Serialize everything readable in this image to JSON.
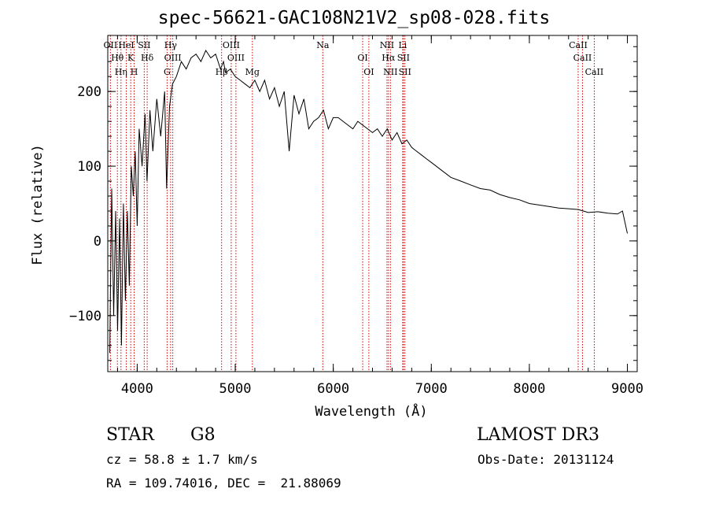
{
  "figure": {
    "title": "spec-56621-GAC108N21V2_sp08-028.fits",
    "object_class": "STAR",
    "subclass": "G8",
    "survey": "LAMOST DR3",
    "cz_text": "cz = 58.8 ± 1.7 km/s",
    "obs_date_text": "Obs-Date: 20131124",
    "radec_text": "RA = 109.74016, DEC =  21.88069"
  },
  "colors": {
    "spectrum": "#000000",
    "line_markers": "#cc0000",
    "axes": "#000000"
  },
  "chart_data": {
    "type": "line",
    "title": "spec-56621-GAC108N21V2_sp08-028.fits",
    "xlabel": "Wavelength (Å)",
    "ylabel": "Flux (relative)",
    "xlim": [
      3700,
      9100
    ],
    "ylim": [
      -175,
      275
    ],
    "xticks": [
      4000,
      5000,
      6000,
      7000,
      8000,
      9000
    ],
    "yticks": [
      -100,
      0,
      100,
      200
    ],
    "series": [
      {
        "name": "flux",
        "x": [
          3720,
          3740,
          3760,
          3780,
          3800,
          3820,
          3840,
          3860,
          3880,
          3900,
          3920,
          3940,
          3960,
          3980,
          4000,
          4020,
          4050,
          4080,
          4100,
          4130,
          4160,
          4200,
          4240,
          4280,
          4300,
          4330,
          4360,
          4400,
          4450,
          4500,
          4550,
          4600,
          4650,
          4700,
          4750,
          4800,
          4850,
          4880,
          4900,
          4950,
          5000,
          5050,
          5100,
          5150,
          5200,
          5250,
          5300,
          5350,
          5400,
          5450,
          5500,
          5550,
          5600,
          5650,
          5700,
          5750,
          5800,
          5850,
          5900,
          5950,
          6000,
          6050,
          6100,
          6150,
          6200,
          6250,
          6300,
          6350,
          6400,
          6450,
          6500,
          6550,
          6600,
          6650,
          6700,
          6750,
          6800,
          6850,
          6900,
          6950,
          7000,
          7100,
          7200,
          7300,
          7400,
          7500,
          7600,
          7700,
          7800,
          7900,
          8000,
          8100,
          8200,
          8300,
          8400,
          8500,
          8550,
          8600,
          8700,
          8800,
          8900,
          8950,
          9000
        ],
        "y": [
          -150,
          70,
          -100,
          40,
          -120,
          30,
          -140,
          50,
          -80,
          40,
          -60,
          100,
          60,
          120,
          20,
          150,
          100,
          170,
          80,
          175,
          120,
          190,
          140,
          200,
          70,
          180,
          210,
          220,
          240,
          230,
          245,
          250,
          240,
          255,
          245,
          250,
          230,
          240,
          225,
          230,
          220,
          215,
          210,
          205,
          215,
          200,
          215,
          190,
          205,
          180,
          200,
          120,
          195,
          170,
          190,
          150,
          160,
          165,
          175,
          150,
          165,
          165,
          160,
          155,
          150,
          160,
          155,
          150,
          145,
          150,
          140,
          150,
          135,
          145,
          130,
          135,
          125,
          120,
          115,
          110,
          105,
          95,
          85,
          80,
          75,
          70,
          68,
          62,
          58,
          55,
          50,
          48,
          46,
          44,
          43,
          42,
          40,
          38,
          39,
          37,
          36,
          40,
          10
        ]
      }
    ],
    "line_markers": [
      {
        "name": "OII",
        "wavelength": 3727
      },
      {
        "name": "Hθ",
        "wavelength": 3798
      },
      {
        "name": "Hη",
        "wavelength": 3835
      },
      {
        "name": "HeI",
        "wavelength": 3889
      },
      {
        "name": "K",
        "wavelength": 3934
      },
      {
        "name": "H",
        "wavelength": 3969
      },
      {
        "name": "SII",
        "wavelength": 4072
      },
      {
        "name": "Hδ",
        "wavelength": 4102
      },
      {
        "name": "G",
        "wavelength": 4305
      },
      {
        "name": "Hγ",
        "wavelength": 4341
      },
      {
        "name": "OIII",
        "wavelength": 4363
      },
      {
        "name": "Hβ",
        "wavelength": 4861
      },
      {
        "name": "OIII",
        "wavelength": 4959
      },
      {
        "name": "OIII",
        "wavelength": 5007
      },
      {
        "name": "Mg",
        "wavelength": 5175
      },
      {
        "name": "Na",
        "wavelength": 5893
      },
      {
        "name": "OI",
        "wavelength": 6300
      },
      {
        "name": "OI",
        "wavelength": 6363
      },
      {
        "name": "NII",
        "wavelength": 6548
      },
      {
        "name": "Hα",
        "wavelength": 6563
      },
      {
        "name": "NII",
        "wavelength": 6583
      },
      {
        "name": "Li",
        "wavelength": 6708
      },
      {
        "name": "SII",
        "wavelength": 6716
      },
      {
        "name": "SII",
        "wavelength": 6731
      },
      {
        "name": "CaII",
        "wavelength": 8498
      },
      {
        "name": "CaII",
        "wavelength": 8542
      },
      {
        "name": "CaII",
        "wavelength": 8662
      }
    ]
  }
}
